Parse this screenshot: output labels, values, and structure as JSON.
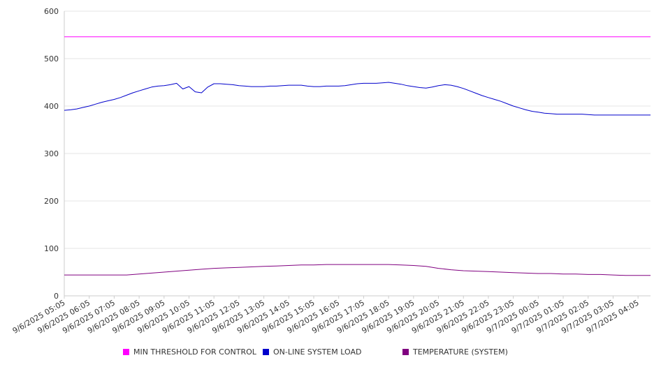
{
  "chart_data": {
    "type": "line",
    "title": "",
    "xlabel": "",
    "ylabel": "",
    "ylim": [
      0,
      600
    ],
    "yticks": [
      "0",
      "100",
      "200",
      "300",
      "400",
      "500",
      "600"
    ],
    "xticks": [
      "9/6/2025 05:05",
      "9/6/2025 06:05",
      "9/6/2025 07:05",
      "9/6/2025 08:05",
      "9/6/2025 09:05",
      "9/6/2025 10:05",
      "9/6/2025 11:05",
      "9/6/2025 12:05",
      "9/6/2025 13:05",
      "9/6/2025 14:05",
      "9/6/2025 15:05",
      "9/6/2025 16:05",
      "9/6/2025 17:05",
      "9/6/2025 18:05",
      "9/6/2025 19:05",
      "9/6/2025 20:05",
      "9/6/2025 21:05",
      "9/6/2025 22:05",
      "9/6/2025 23:05",
      "9/7/2025 00:05",
      "9/7/2025 01:05",
      "9/7/2025 02:05",
      "9/7/2025 03:05",
      "9/7/2025 04:05"
    ],
    "grid": true,
    "legend_position": "bottom",
    "series": [
      {
        "name": "MIN THRESHOLD FOR CONTROL",
        "color": "#ff00ff",
        "points": [
          [
            0,
            546
          ],
          [
            0.5,
            546
          ],
          [
            1,
            546
          ],
          [
            1.5,
            546
          ],
          [
            2,
            546
          ],
          [
            2.5,
            546
          ],
          [
            3,
            546
          ],
          [
            3.5,
            546
          ],
          [
            4,
            546
          ],
          [
            4.5,
            546
          ],
          [
            5,
            546
          ],
          [
            5.5,
            546
          ],
          [
            6,
            546
          ],
          [
            6.5,
            546
          ],
          [
            7,
            546
          ],
          [
            7.5,
            546
          ],
          [
            8,
            546
          ],
          [
            8.5,
            546
          ],
          [
            9,
            546
          ],
          [
            9.5,
            546
          ],
          [
            10,
            546
          ],
          [
            10.5,
            546
          ],
          [
            11,
            546
          ],
          [
            11.5,
            546
          ],
          [
            12,
            546
          ],
          [
            12.5,
            546
          ],
          [
            13,
            546
          ],
          [
            13.5,
            546
          ],
          [
            14,
            546
          ],
          [
            14.5,
            546
          ],
          [
            15,
            546
          ],
          [
            15.5,
            546
          ],
          [
            16,
            546
          ],
          [
            16.5,
            546
          ],
          [
            17,
            546
          ],
          [
            17.5,
            546
          ],
          [
            18,
            546
          ],
          [
            18.5,
            546
          ],
          [
            19,
            546
          ],
          [
            19.5,
            546
          ],
          [
            20,
            546
          ],
          [
            20.5,
            546
          ],
          [
            21,
            546
          ],
          [
            21.5,
            546
          ],
          [
            22,
            546
          ],
          [
            22.5,
            546
          ],
          [
            23,
            546
          ],
          [
            23.5,
            546
          ]
        ]
      },
      {
        "name": "ON-LINE SYSTEM LOAD",
        "color": "#0000cc",
        "points": [
          [
            0,
            391
          ],
          [
            0.25,
            392
          ],
          [
            0.5,
            394
          ],
          [
            0.75,
            397
          ],
          [
            1,
            400
          ],
          [
            1.25,
            404
          ],
          [
            1.5,
            408
          ],
          [
            1.75,
            411
          ],
          [
            2,
            414
          ],
          [
            2.25,
            418
          ],
          [
            2.5,
            423
          ],
          [
            2.75,
            428
          ],
          [
            3,
            432
          ],
          [
            3.25,
            436
          ],
          [
            3.5,
            440
          ],
          [
            3.75,
            442
          ],
          [
            4,
            443
          ],
          [
            4.25,
            445
          ],
          [
            4.5,
            448
          ],
          [
            4.75,
            436
          ],
          [
            5,
            441
          ],
          [
            5.25,
            430
          ],
          [
            5.5,
            428
          ],
          [
            5.75,
            440
          ],
          [
            6,
            447
          ],
          [
            6.25,
            447
          ],
          [
            6.5,
            446
          ],
          [
            6.75,
            445
          ],
          [
            7,
            443
          ],
          [
            7.25,
            442
          ],
          [
            7.5,
            441
          ],
          [
            7.75,
            441
          ],
          [
            8,
            441
          ],
          [
            8.25,
            442
          ],
          [
            8.5,
            442
          ],
          [
            8.75,
            443
          ],
          [
            9,
            444
          ],
          [
            9.25,
            444
          ],
          [
            9.5,
            444
          ],
          [
            9.75,
            442
          ],
          [
            10,
            441
          ],
          [
            10.25,
            441
          ],
          [
            10.5,
            442
          ],
          [
            10.75,
            442
          ],
          [
            11,
            442
          ],
          [
            11.25,
            443
          ],
          [
            11.5,
            445
          ],
          [
            11.75,
            447
          ],
          [
            12,
            448
          ],
          [
            12.25,
            448
          ],
          [
            12.5,
            448
          ],
          [
            12.75,
            449
          ],
          [
            13,
            450
          ],
          [
            13.25,
            448
          ],
          [
            13.5,
            446
          ],
          [
            13.75,
            443
          ],
          [
            14,
            441
          ],
          [
            14.25,
            439
          ],
          [
            14.5,
            438
          ],
          [
            14.75,
            440
          ],
          [
            15,
            443
          ],
          [
            15.25,
            445
          ],
          [
            15.5,
            444
          ],
          [
            15.75,
            441
          ],
          [
            16,
            437
          ],
          [
            16.25,
            432
          ],
          [
            16.5,
            427
          ],
          [
            16.75,
            422
          ],
          [
            17,
            418
          ],
          [
            17.25,
            414
          ],
          [
            17.5,
            410
          ],
          [
            17.75,
            405
          ],
          [
            18,
            400
          ],
          [
            18.25,
            396
          ],
          [
            18.5,
            392
          ],
          [
            18.75,
            389
          ],
          [
            19,
            387
          ],
          [
            19.25,
            385
          ],
          [
            19.5,
            384
          ],
          [
            19.75,
            383
          ],
          [
            20,
            383
          ],
          [
            20.25,
            383
          ],
          [
            20.5,
            383
          ],
          [
            20.75,
            383
          ],
          [
            21,
            382
          ],
          [
            21.25,
            381
          ],
          [
            21.5,
            381
          ],
          [
            21.75,
            381
          ],
          [
            22,
            381
          ],
          [
            22.25,
            381
          ],
          [
            22.5,
            381
          ],
          [
            22.75,
            381
          ],
          [
            23,
            381
          ],
          [
            23.25,
            381
          ],
          [
            23.5,
            381
          ]
        ]
      },
      {
        "name": "TEMPERATURE (SYSTEM)",
        "color": "#800080",
        "points": [
          [
            0,
            44
          ],
          [
            0.5,
            44
          ],
          [
            1,
            44
          ],
          [
            1.5,
            44
          ],
          [
            2,
            44
          ],
          [
            2.5,
            44
          ],
          [
            3,
            46
          ],
          [
            3.5,
            48
          ],
          [
            4,
            50
          ],
          [
            4.5,
            52
          ],
          [
            5,
            54
          ],
          [
            5.5,
            56
          ],
          [
            6,
            58
          ],
          [
            6.5,
            59
          ],
          [
            7,
            60
          ],
          [
            7.5,
            61
          ],
          [
            8,
            62
          ],
          [
            8.5,
            63
          ],
          [
            9,
            64
          ],
          [
            9.5,
            65
          ],
          [
            10,
            65
          ],
          [
            10.5,
            66
          ],
          [
            11,
            66
          ],
          [
            11.5,
            66
          ],
          [
            12,
            66
          ],
          [
            12.5,
            66
          ],
          [
            13,
            66
          ],
          [
            13.5,
            65
          ],
          [
            14,
            64
          ],
          [
            14.5,
            62
          ],
          [
            15,
            58
          ],
          [
            15.5,
            55
          ],
          [
            16,
            53
          ],
          [
            16.5,
            52
          ],
          [
            17,
            51
          ],
          [
            17.5,
            50
          ],
          [
            18,
            49
          ],
          [
            18.5,
            48
          ],
          [
            19,
            47
          ],
          [
            19.5,
            47
          ],
          [
            20,
            46
          ],
          [
            20.5,
            46
          ],
          [
            21,
            45
          ],
          [
            21.5,
            45
          ],
          [
            22,
            44
          ],
          [
            22.5,
            43
          ],
          [
            23,
            43
          ],
          [
            23.5,
            43
          ]
        ]
      }
    ]
  }
}
